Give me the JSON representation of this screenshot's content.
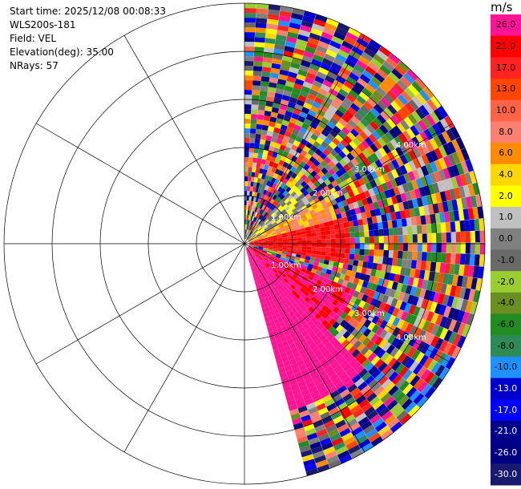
{
  "info": {
    "start_time": "Start time: 2025/12/08 00:08:33",
    "instrument": "WLS200s-181",
    "field": "Field: VEL",
    "elevation": "Elevation(deg): 35.00",
    "nrays": "NRays: 57"
  },
  "colorbar": {
    "unit": "m/s",
    "levels": [
      {
        "label": "26.0",
        "color": "#ff1493"
      },
      {
        "label": "21.0",
        "color": "#ff0000"
      },
      {
        "label": "17.0",
        "color": "#ff2222"
      },
      {
        "label": "13.0",
        "color": "#ff4500"
      },
      {
        "label": "10.0",
        "color": "#ff6347"
      },
      {
        "label": "8.0",
        "color": "#fa8072"
      },
      {
        "label": "6.0",
        "color": "#ff8c00"
      },
      {
        "label": "4.0",
        "color": "#ffd700"
      },
      {
        "label": "2.0",
        "color": "#ffff00"
      },
      {
        "label": "1.0",
        "color": "#c0c0c0"
      },
      {
        "label": "0.0",
        "color": "#808080"
      },
      {
        "label": "-1.0",
        "color": "#696969"
      },
      {
        "label": "-2.0",
        "color": "#9acd32"
      },
      {
        "label": "-4.0",
        "color": "#6b8e23"
      },
      {
        "label": "-6.0",
        "color": "#228b22"
      },
      {
        "label": "-8.0",
        "color": "#2e8b57"
      },
      {
        "label": "-10.0",
        "color": "#1e90ff"
      },
      {
        "label": "-13.0",
        "color": "#0000cd"
      },
      {
        "label": "-17.0",
        "color": "#0000ff"
      },
      {
        "label": "-21.0",
        "color": "#00008b"
      },
      {
        "label": "-26.0",
        "color": "#000080"
      },
      {
        "label": "-30.0",
        "color": "#191970"
      }
    ]
  },
  "chart_data": {
    "type": "heatmap",
    "field": "VEL",
    "units": "m/s",
    "elevation_deg": 35.0,
    "n_rays": 57,
    "range_rings_km": [
      1.0,
      2.0,
      3.0,
      4.0
    ],
    "range_ring_labels": [
      "1.00km",
      "2.00km",
      "3.00km",
      "4.00km"
    ],
    "max_range_km": 5.0,
    "azimuth_range_deg": [
      0,
      165
    ],
    "grid": true,
    "colorbar_levels": [
      26.0,
      21.0,
      17.0,
      13.0,
      10.0,
      8.0,
      6.0,
      4.0,
      2.0,
      1.0,
      0.0,
      -1.0,
      -2.0,
      -4.0,
      -6.0,
      -8.0,
      -10.0,
      -13.0,
      -17.0,
      -21.0,
      -26.0,
      -30.0
    ]
  }
}
